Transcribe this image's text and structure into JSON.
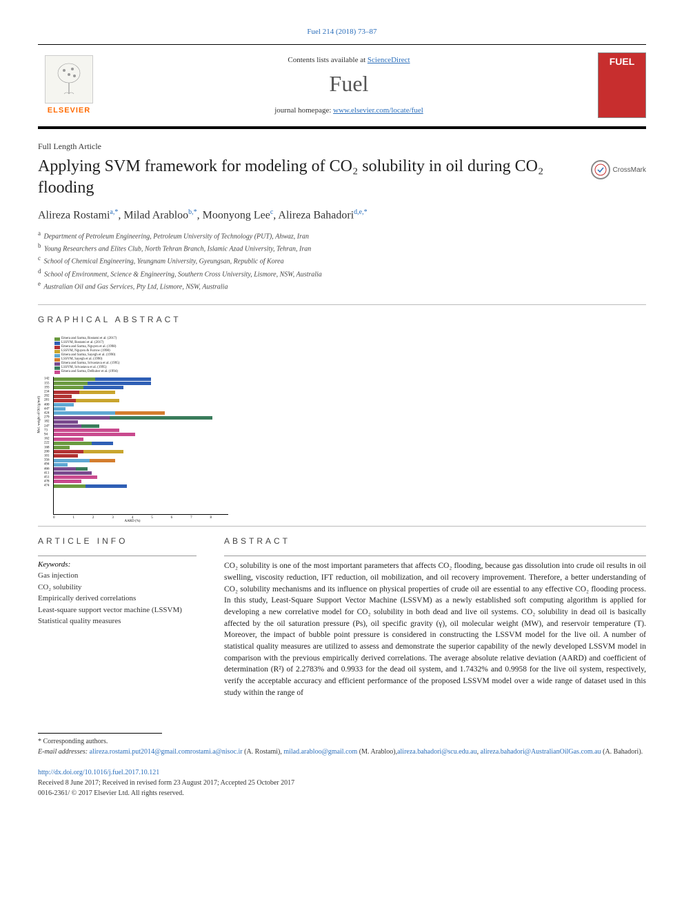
{
  "top_citation": "Fuel 214 (2018) 73–87",
  "header": {
    "contents_prefix": "Contents lists available at ",
    "contents_link": "ScienceDirect",
    "journal": "Fuel",
    "homepage_prefix": "journal homepage: ",
    "homepage_url": "www.elsevier.com/locate/fuel",
    "publisher": "ELSEVIER"
  },
  "article_type": "Full Length Article",
  "title": "Applying SVM framework for modeling of CO₂ solubility in oil during CO₂ flooding",
  "crossmark": "CrossMark",
  "authors_html": "Alireza Rostami<sup>a,*</sup>, Milad Arabloo<sup>b,*</sup>, Moonyong Lee<sup>c</sup>, Alireza Bahadori<sup>d,e,*</sup>",
  "affiliations": [
    {
      "sup": "a",
      "text": "Department of Petroleum Engineering, Petroleum University of Technology (PUT), Ahwaz, Iran"
    },
    {
      "sup": "b",
      "text": "Young Researchers and Elites Club, North Tehran Branch, Islamic Azad University, Tehran, Iran"
    },
    {
      "sup": "c",
      "text": "School of Chemical Engineering, Yeungnam University, Gyeungsan, Republic of Korea"
    },
    {
      "sup": "d",
      "text": "School of Environment, Science & Engineering, Southern Cross University, Lismore, NSW, Australia"
    },
    {
      "sup": "e",
      "text": "Australian Oil and Gas Services, Pty Ltd, Lismore, NSW, Australia"
    }
  ],
  "sections": {
    "graphical": "GRAPHICAL ABSTRACT",
    "info": "ARTICLE INFO",
    "abstract": "ABSTRACT"
  },
  "graphical_abstract": {
    "type": "grouped-horizontal-bar",
    "legend": [
      {
        "color": "#6a9a3f",
        "label": "Emera and Sarma, Rostami et al. (2017)"
      },
      {
        "color": "#2f5fb5",
        "label": "LSSVM, Rostami et al. (2017)"
      },
      {
        "color": "#b23232",
        "label": "Emera and Sarma, Nguyen et al. (1998)"
      },
      {
        "color": "#c9a52e",
        "label": "LSSVM, Nguyen & Furrow (1998)"
      },
      {
        "color": "#5fa8d3",
        "label": "Emera and Sarma, Sayegh et al. (1990)"
      },
      {
        "color": "#d47d2e",
        "label": "LSSVM, Sayegh et al. (1990)"
      },
      {
        "color": "#7a4a8e",
        "label": "Emera and Sarma, Srivastava et al. (1995)"
      },
      {
        "color": "#3a7c5b",
        "label": "LSSVM, Srivastava et al. (1995)"
      },
      {
        "color": "#c94a8e",
        "label": "Emera and Sarma, DeRuiter et al. (1994)"
      }
    ],
    "y_categories": [
      "142",
      "155",
      "193",
      "234",
      "202",
      "281",
      "400",
      "447",
      "424",
      "279",
      "182",
      "247",
      "73",
      "94",
      "162",
      "222",
      "168",
      "200",
      "101",
      "356",
      "494",
      "466",
      "411",
      "451",
      "478",
      "474"
    ],
    "rows": [
      {
        "y": "142",
        "bars": [
          {
            "c": 0,
            "v": 2.1
          },
          {
            "c": 1,
            "v": 2.8
          }
        ]
      },
      {
        "y": "155",
        "bars": [
          {
            "c": 0,
            "v": 1.7
          },
          {
            "c": 1,
            "v": 3.2
          }
        ]
      },
      {
        "y": "193",
        "bars": [
          {
            "c": 0,
            "v": 1.5
          },
          {
            "c": 1,
            "v": 2.0
          }
        ]
      },
      {
        "y": "234",
        "bars": [
          {
            "c": 2,
            "v": 1.3
          },
          {
            "c": 3,
            "v": 1.8
          }
        ]
      },
      {
        "y": "202",
        "bars": [
          {
            "c": 2,
            "v": 0.9
          }
        ]
      },
      {
        "y": "281",
        "bars": [
          {
            "c": 2,
            "v": 1.1
          },
          {
            "c": 3,
            "v": 2.2
          }
        ]
      },
      {
        "y": "400",
        "bars": [
          {
            "c": 4,
            "v": 1.0
          }
        ]
      },
      {
        "y": "447",
        "bars": [
          {
            "c": 4,
            "v": 0.6
          }
        ]
      },
      {
        "y": "424",
        "bars": [
          {
            "c": 4,
            "v": 3.1
          },
          {
            "c": 5,
            "v": 2.5
          }
        ]
      },
      {
        "y": "279",
        "bars": [
          {
            "c": 6,
            "v": 2.8
          },
          {
            "c": 7,
            "v": 5.2
          }
        ]
      },
      {
        "y": "182",
        "bars": [
          {
            "c": 6,
            "v": 1.2
          }
        ]
      },
      {
        "y": "247",
        "bars": [
          {
            "c": 6,
            "v": 1.4
          },
          {
            "c": 7,
            "v": 0.9
          }
        ]
      },
      {
        "y": "73",
        "bars": [
          {
            "c": 8,
            "v": 3.3
          }
        ]
      },
      {
        "y": "94",
        "bars": [
          {
            "c": 8,
            "v": 4.1
          }
        ]
      },
      {
        "y": "162",
        "bars": [
          {
            "c": 8,
            "v": 1.5
          }
        ]
      },
      {
        "y": "222",
        "bars": [
          {
            "c": 0,
            "v": 1.9
          },
          {
            "c": 1,
            "v": 1.1
          }
        ]
      },
      {
        "y": "168",
        "bars": [
          {
            "c": 0,
            "v": 0.8
          }
        ]
      },
      {
        "y": "200",
        "bars": [
          {
            "c": 2,
            "v": 1.5
          },
          {
            "c": 3,
            "v": 2.0
          }
        ]
      },
      {
        "y": "101",
        "bars": [
          {
            "c": 2,
            "v": 1.2
          }
        ]
      },
      {
        "y": "356",
        "bars": [
          {
            "c": 4,
            "v": 1.8
          },
          {
            "c": 5,
            "v": 1.3
          }
        ]
      },
      {
        "y": "494",
        "bars": [
          {
            "c": 4,
            "v": 0.7
          }
        ]
      },
      {
        "y": "466",
        "bars": [
          {
            "c": 6,
            "v": 1.1
          },
          {
            "c": 7,
            "v": 0.6
          }
        ]
      },
      {
        "y": "411",
        "bars": [
          {
            "c": 6,
            "v": 1.9
          }
        ]
      },
      {
        "y": "451",
        "bars": [
          {
            "c": 8,
            "v": 2.2
          }
        ]
      },
      {
        "y": "478",
        "bars": [
          {
            "c": 8,
            "v": 1.4
          }
        ]
      },
      {
        "y": "474",
        "bars": [
          {
            "c": 0,
            "v": 1.6
          },
          {
            "c": 1,
            "v": 2.1
          }
        ]
      }
    ],
    "x_label": "AARD (%)",
    "y_label": "Mol. weight of Oil (g/mol)",
    "xlim": [
      0,
      8
    ],
    "xtick_step": 1,
    "background": "#ffffff",
    "grid_color": "#d0d0d0"
  },
  "keywords_label": "Keywords:",
  "keywords": [
    "Gas injection",
    "CO₂ solubility",
    "Empirically derived correlations",
    "Least-square support vector machine (LSSVM)",
    "Statistical quality measures"
  ],
  "abstract": "CO₂ solubility is one of the most important parameters that affects CO₂ flooding, because gas dissolution into crude oil results in oil swelling, viscosity reduction, IFT reduction, oil mobilization, and oil recovery improvement. Therefore, a better understanding of CO₂ solubility mechanisms and its influence on physical properties of crude oil are essential to any effective CO₂ flooding process. In this study, Least-Square Support Vector Machine (LSSVM) as a newly established soft computing algorithm is applied for developing a new correlative model for CO₂ solubility in both dead and live oil systems. CO₂ solubility in dead oil is basically affected by the oil saturation pressure (Ps), oil specific gravity (γ), oil molecular weight (MW), and reservoir temperature (T). Moreover, the impact of bubble point pressure is considered in constructing the LSSVM model for the live oil. A number of statistical quality measures are utilized to assess and demonstrate the superior capability of the newly developed LSSVM model in comparison with the previous empirically derived correlations. The average absolute relative deviation (AARD) and coefficient of determination (R²) of 2.2783% and 0.9933 for the dead oil system, and 1.7432% and 0.9958 for the live oil system, respectively, verify the acceptable accuracy and efficient performance of the proposed LSSVM model over a wide range of dataset used in this study within the range of",
  "footer": {
    "corresponding": "* Corresponding authors.",
    "emails_label": "E-mail addresses: ",
    "emails": [
      {
        "addr": "alireza.rostami.put2014@gmail.com",
        "who": ""
      },
      {
        "addr": "rostami.a@nisoc.ir",
        "who": " (A. Rostami), "
      },
      {
        "addr": "milad.arabloo@gmail.com",
        "who": " (M. Arabloo),"
      },
      {
        "addr": "alireza.bahadori@scu.edu.au",
        "who": ", "
      },
      {
        "addr": "alireza.bahadori@AustralianOilGas.com.au",
        "who": " (A. Bahadori)."
      }
    ],
    "doi": "http://dx.doi.org/10.1016/j.fuel.2017.10.121",
    "history": "Received 8 June 2017; Received in revised form 23 August 2017; Accepted 25 October 2017",
    "copyright": "0016-2361/ © 2017 Elsevier Ltd. All rights reserved."
  }
}
